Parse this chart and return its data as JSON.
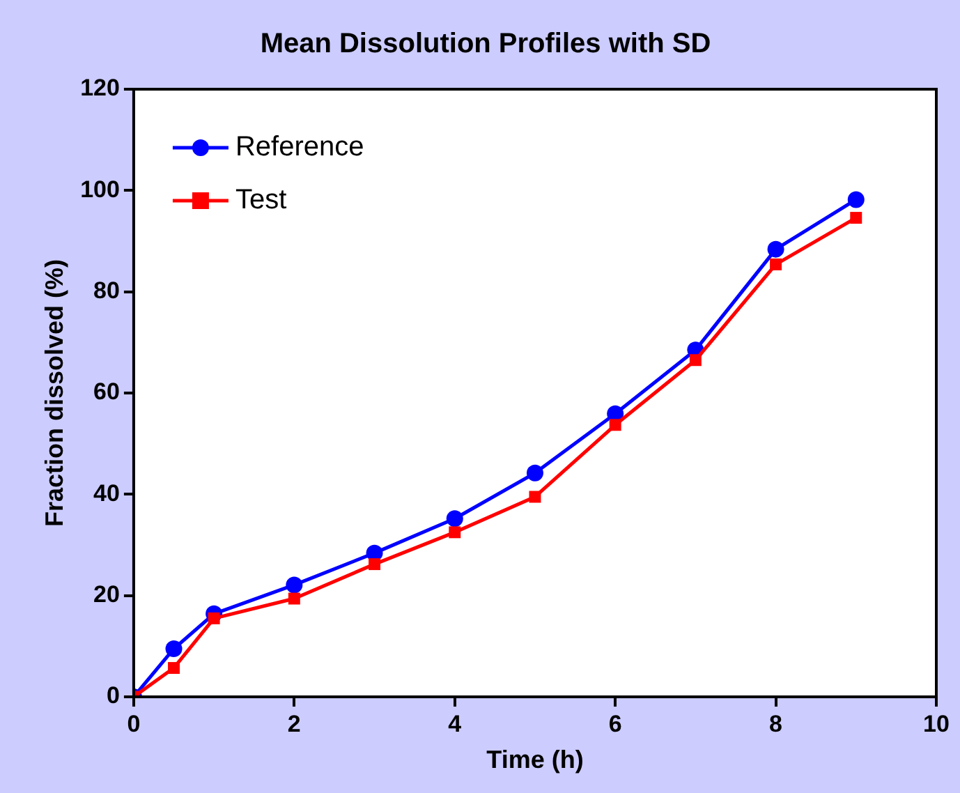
{
  "chart_data": {
    "type": "line",
    "title": "Mean Dissolution Profiles with SD",
    "xlabel": "Time (h)",
    "ylabel": "Fraction dissolved (%)",
    "x": [
      0,
      0.5,
      1,
      2,
      3,
      4,
      5,
      6,
      7,
      8,
      9
    ],
    "series": [
      {
        "name": "Reference",
        "color": "#0000ff",
        "marker": "circle",
        "values": [
          0,
          9.5,
          16.4,
          22.1,
          28.4,
          35.2,
          44.2,
          55.9,
          68.5,
          88.4,
          98.2
        ]
      },
      {
        "name": "Test",
        "color": "#ff0000",
        "marker": "square",
        "values": [
          0,
          5.7,
          15.5,
          19.4,
          26.2,
          32.5,
          39.5,
          53.7,
          66.5,
          85.4,
          94.6
        ]
      }
    ],
    "xlim": [
      0,
      10
    ],
    "xticks": [
      0,
      2,
      4,
      6,
      8,
      10
    ],
    "ylim": [
      0,
      120
    ],
    "yticks": [
      0,
      20,
      40,
      60,
      80,
      100,
      120
    ],
    "grid": false,
    "legend": "top left",
    "line_style": "solid"
  }
}
